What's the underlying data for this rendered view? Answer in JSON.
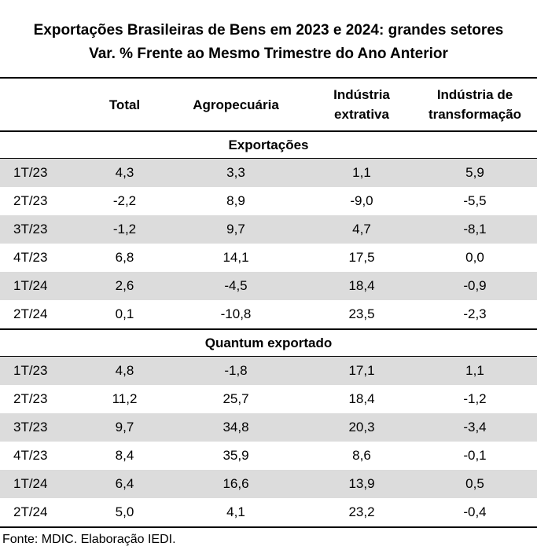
{
  "title": {
    "line1": "Exportações Brasileiras de Bens em 2023 e 2024: grandes setores",
    "line2": "Var. %  Frente ao Mesmo Trimestre do Ano Anterior"
  },
  "columns": {
    "total": "Total",
    "agro": "Agropecuária",
    "extrativa_1": "Indústria",
    "extrativa_2": "extrativa",
    "transf_1": "Indústria de",
    "transf_2": "transformação"
  },
  "sections": [
    {
      "title": "Exportações",
      "rows": [
        {
          "label": "1T/23",
          "total": "4,3",
          "agro": "3,3",
          "extrativa": "1,1",
          "transf": "5,9"
        },
        {
          "label": "2T/23",
          "total": "-2,2",
          "agro": "8,9",
          "extrativa": "-9,0",
          "transf": "-5,5"
        },
        {
          "label": "3T/23",
          "total": "-1,2",
          "agro": "9,7",
          "extrativa": "4,7",
          "transf": "-8,1"
        },
        {
          "label": "4T/23",
          "total": "6,8",
          "agro": "14,1",
          "extrativa": "17,5",
          "transf": "0,0"
        },
        {
          "label": "1T/24",
          "total": "2,6",
          "agro": "-4,5",
          "extrativa": "18,4",
          "transf": "-0,9"
        },
        {
          "label": "2T/24",
          "total": "0,1",
          "agro": "-10,8",
          "extrativa": "23,5",
          "transf": "-2,3"
        }
      ]
    },
    {
      "title": "Quantum exportado",
      "rows": [
        {
          "label": "1T/23",
          "total": "4,8",
          "agro": "-1,8",
          "extrativa": "17,1",
          "transf": "1,1"
        },
        {
          "label": "2T/23",
          "total": "11,2",
          "agro": "25,7",
          "extrativa": "18,4",
          "transf": "-1,2"
        },
        {
          "label": "3T/23",
          "total": "9,7",
          "agro": "34,8",
          "extrativa": "20,3",
          "transf": "-3,4"
        },
        {
          "label": "4T/23",
          "total": "8,4",
          "agro": "35,9",
          "extrativa": "8,6",
          "transf": "-0,1"
        },
        {
          "label": "1T/24",
          "total": "6,4",
          "agro": "16,6",
          "extrativa": "13,9",
          "transf": "0,5"
        },
        {
          "label": "2T/24",
          "total": "5,0",
          "agro": "4,1",
          "extrativa": "23,2",
          "transf": "-0,4"
        }
      ]
    }
  ],
  "source": "Fonte: MDIC. Elaboração IEDI.",
  "colors": {
    "row_shade": "#dcdcdc",
    "rule": "#000000"
  }
}
